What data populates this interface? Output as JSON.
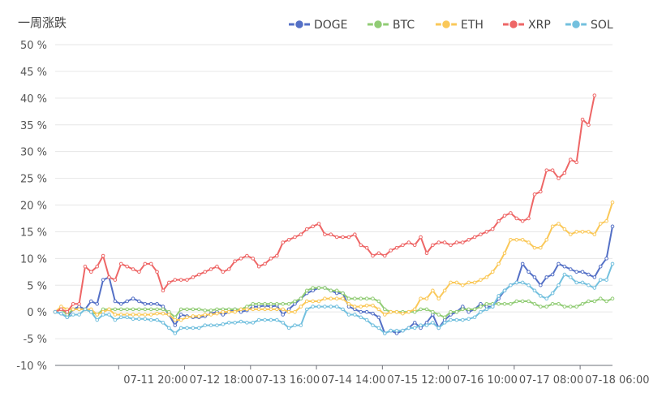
{
  "chart_data": {
    "type": "line",
    "title": "一周涨跌",
    "ylim": [
      -10,
      50
    ],
    "yticks": [
      "-10 %",
      "-5 %",
      "0 %",
      "5 %",
      "10 %",
      "15 %",
      "20 %",
      "25 %",
      "30 %",
      "35 %",
      "40 %",
      "45 %",
      "50 %"
    ],
    "ytick_values": [
      -10,
      -5,
      0,
      5,
      10,
      15,
      20,
      25,
      30,
      35,
      40,
      45,
      50
    ],
    "xtick_labels": [
      {
        "label": "07-11 20:00",
        "index": 11
      },
      {
        "label": "07-12 18:00",
        "index": 22
      },
      {
        "label": "07-13 16:00",
        "index": 33
      },
      {
        "label": "07-14 14:00",
        "index": 44
      },
      {
        "label": "07-15 12:00",
        "index": 55
      },
      {
        "label": "07-16 10:00",
        "index": 66
      },
      {
        "label": "07-17 08:00",
        "index": 77
      },
      {
        "label": "07-18 06:00",
        "index": 88
      }
    ],
    "legend_position": "top-right",
    "grid": "horizontal",
    "series": [
      {
        "name": "DOGE",
        "color": "#5470c6",
        "values": [
          0,
          -0.3,
          -1,
          0.5,
          1,
          0.5,
          2,
          1.5,
          6,
          6.5,
          2,
          1.5,
          2,
          2.5,
          2,
          1.5,
          1.5,
          1.5,
          1,
          -0.5,
          -2.5,
          -0.5,
          -0.8,
          -1,
          -1,
          -0.8,
          -0.3,
          0,
          -0.5,
          0,
          0.5,
          0,
          0.3,
          1,
          1,
          1.2,
          1,
          1.2,
          -0.5,
          0.5,
          1.5,
          2.5,
          3.5,
          4,
          4.5,
          4.5,
          4,
          3.5,
          3.5,
          1,
          0.5,
          0,
          0,
          -0.3,
          -1,
          -4,
          -3.5,
          -4,
          -3.5,
          -3,
          -2,
          -3,
          -2,
          -0.5,
          -3,
          -1.5,
          -0.5,
          0,
          1,
          0,
          0.5,
          1.5,
          1,
          1,
          2.5,
          4,
          5,
          5.5,
          9,
          7.5,
          6.5,
          5,
          6.5,
          7,
          9,
          8.5,
          8,
          7.5,
          7.5,
          7,
          6.5,
          8.5,
          10,
          16
        ]
      },
      {
        "name": "BTC",
        "color": "#91cc75",
        "values": [
          0,
          0.5,
          -0.5,
          0.5,
          0.5,
          0.5,
          0,
          -0.5,
          0.5,
          0.5,
          0.5,
          0.5,
          0.5,
          0.5,
          0.5,
          0.5,
          0.5,
          0.5,
          0.5,
          0,
          -1,
          0.5,
          0.5,
          0.5,
          0.5,
          0.3,
          0.3,
          0.5,
          0.5,
          0.5,
          0.5,
          0.5,
          1,
          1.5,
          1.5,
          1.5,
          1.5,
          1.5,
          1.5,
          1.5,
          2,
          2.5,
          4,
          4.5,
          4.5,
          4.5,
          4,
          4,
          3.5,
          2.5,
          2.5,
          2.5,
          2.5,
          2.5,
          2,
          0.5,
          0,
          0,
          0,
          0,
          0,
          0.5,
          0.5,
          0,
          -0.5,
          -1,
          0,
          0,
          0.5,
          0.5,
          0.5,
          1,
          1.5,
          1.5,
          1.5,
          1.5,
          1.5,
          2,
          2,
          2,
          1.5,
          1,
          1,
          1.5,
          1.5,
          1,
          1,
          1,
          1.5,
          2,
          2,
          2.5,
          2,
          2.5
        ]
      },
      {
        "name": "ETH",
        "color": "#fac858",
        "values": [
          0,
          1,
          0.5,
          0.5,
          0.5,
          0.5,
          0.5,
          -0.5,
          0,
          0.5,
          -0.5,
          -0.5,
          -0.5,
          -0.5,
          -0.5,
          -0.5,
          -0.5,
          -0.3,
          -0.3,
          -0.5,
          -1.5,
          -1.5,
          -1,
          -0.8,
          -0.8,
          -0.5,
          -0.5,
          -0.3,
          0,
          0,
          0,
          0.5,
          0.5,
          0.5,
          0.5,
          0.5,
          0.5,
          0.5,
          0.5,
          0,
          0,
          1,
          2,
          2,
          2,
          2.5,
          2.5,
          2.5,
          2.5,
          1.5,
          1,
          1,
          1.2,
          1.2,
          0.5,
          -0.5,
          0,
          0,
          -0.3,
          0,
          0.5,
          2.5,
          2.5,
          4,
          2.5,
          4,
          5.5,
          5.5,
          5,
          5.5,
          5.5,
          6,
          6.5,
          7.5,
          9,
          11,
          13.5,
          13.5,
          13.5,
          13,
          12,
          12,
          13.5,
          16,
          16.5,
          15.5,
          14.5,
          15,
          15,
          15,
          14.5,
          16.5,
          17,
          20.5
        ]
      },
      {
        "name": "XRP",
        "color": "#ee6666",
        "values": [
          0,
          0.5,
          0,
          1.5,
          1.5,
          8.5,
          7.5,
          8.5,
          10.5,
          6.5,
          6,
          9,
          8.5,
          8,
          7.5,
          9,
          9,
          7.5,
          4,
          5.5,
          6,
          6,
          6,
          6.5,
          7,
          7.5,
          8,
          8.5,
          7.5,
          8,
          9.5,
          10,
          10.5,
          10,
          8.5,
          9,
          10,
          10.5,
          13,
          13.5,
          14,
          14.5,
          15.5,
          16,
          16.5,
          14.5,
          14.5,
          14,
          14,
          14,
          14.5,
          12.5,
          12,
          10.5,
          11,
          10.5,
          11.5,
          12,
          12.5,
          13,
          12.5,
          14,
          11,
          12.5,
          13,
          13,
          12.5,
          13,
          13,
          13.5,
          14,
          14.5,
          15,
          15.5,
          17,
          18,
          18.5,
          17.5,
          17,
          17.5,
          22,
          22.5,
          26.5,
          26.5,
          25,
          26,
          28.5,
          28,
          36,
          35,
          40.5
        ]
      },
      {
        "name": "SOL",
        "color": "#73c0de",
        "values": [
          0,
          -0.3,
          -1,
          -0.5,
          -0.5,
          0.5,
          0,
          -1.5,
          -0.5,
          -0.5,
          -1.5,
          -1,
          -1,
          -1.3,
          -1.3,
          -1.3,
          -1.5,
          -1.5,
          -2,
          -3,
          -4,
          -3,
          -3,
          -3,
          -3,
          -2.5,
          -2.5,
          -2.5,
          -2.3,
          -2,
          -2,
          -1.8,
          -2,
          -2,
          -1.5,
          -1.5,
          -1.5,
          -1.5,
          -2,
          -3,
          -2.5,
          -2.5,
          0.5,
          1,
          1,
          1,
          1,
          1,
          0.5,
          -0.5,
          -0.5,
          -1,
          -1.5,
          -2.5,
          -3,
          -4,
          -3.5,
          -3.5,
          -3.5,
          -3,
          -3,
          -2.5,
          -2.5,
          -2,
          -3,
          -2,
          -1.5,
          -1.5,
          -1.5,
          -1.3,
          -1,
          0,
          0.5,
          1,
          3,
          4,
          5,
          5.5,
          5.5,
          5,
          4,
          3,
          2.5,
          3.5,
          5,
          7,
          6.5,
          5.5,
          5.5,
          5,
          4.5,
          6,
          6,
          9
        ]
      }
    ]
  }
}
